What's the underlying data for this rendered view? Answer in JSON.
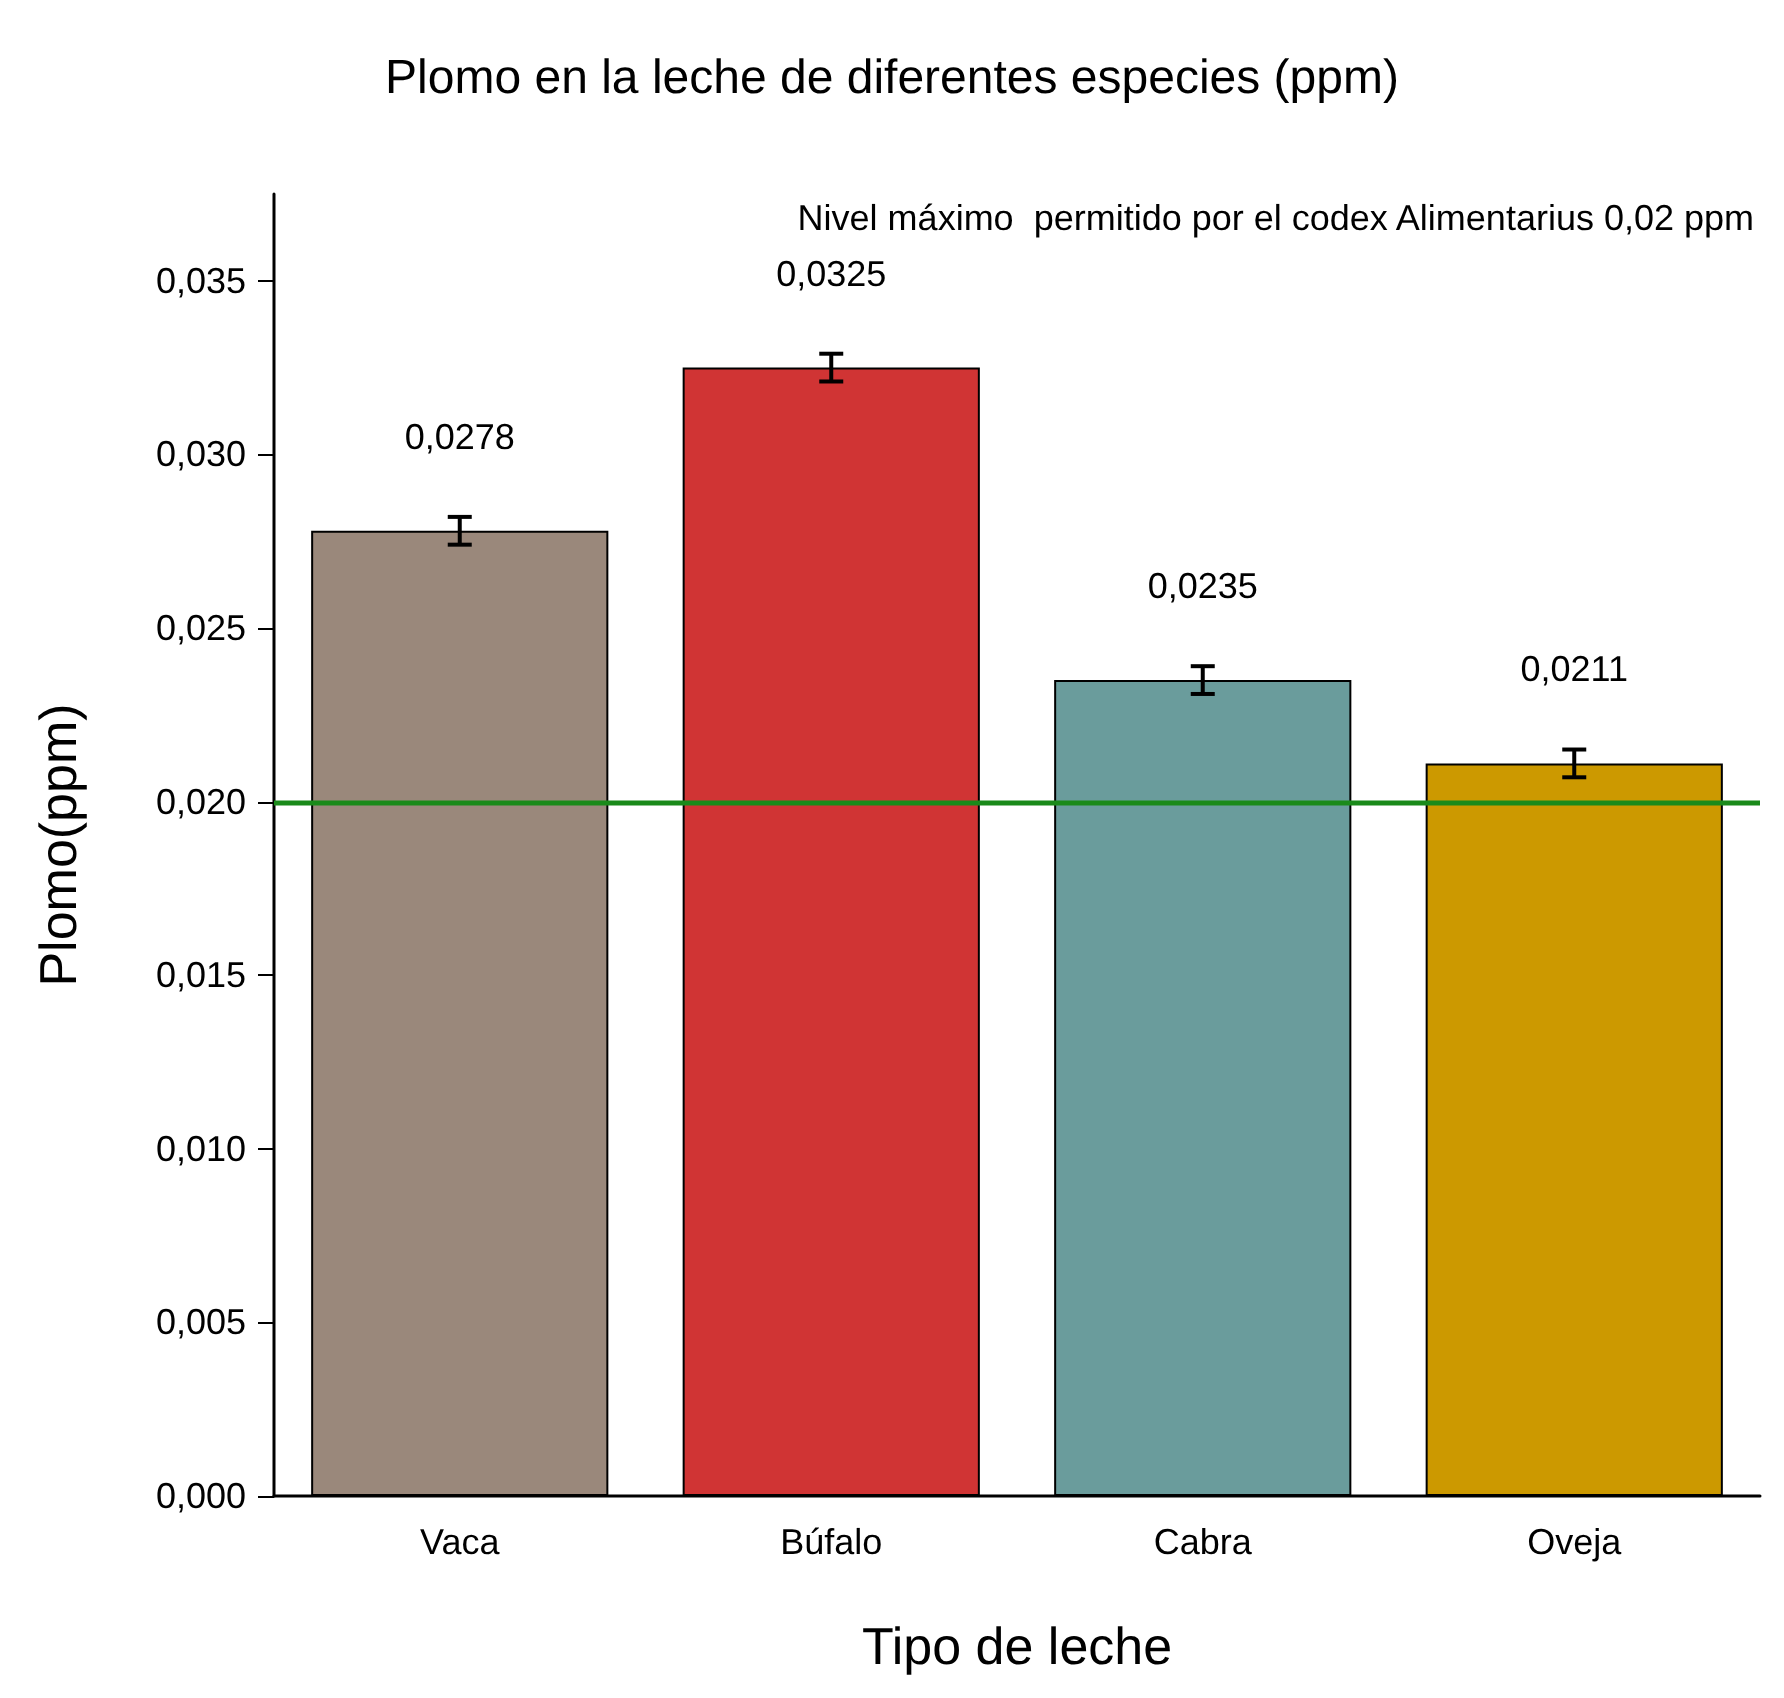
{
  "chart_data": {
    "type": "bar",
    "title": "Plomo en la leche de diferentes especies (ppm)",
    "xlabel": "Tipo de leche",
    "ylabel": "Plomo(ppm)",
    "categories": [
      "Vaca",
      "Búfalo",
      "Cabra",
      "Oveja"
    ],
    "values": [
      0.0278,
      0.0325,
      0.0235,
      0.0211
    ],
    "colors": [
      "#9a887b",
      "#d03434",
      "#6a9c9c",
      "#cc9900"
    ],
    "errors": [
      0.0004,
      0.0004,
      0.0004,
      0.0004
    ],
    "value_labels": [
      "0,0278",
      "0,0325",
      "0,0235",
      "0,0211"
    ],
    "ylim": [
      0,
      0.0375
    ],
    "yticks": [
      {
        "value": 0,
        "label": "0,000"
      },
      {
        "value": 0.005,
        "label": "0,005"
      },
      {
        "value": 0.01,
        "label": "0,010"
      },
      {
        "value": 0.015,
        "label": "0,015"
      },
      {
        "value": 0.02,
        "label": "0,020"
      },
      {
        "value": 0.025,
        "label": "0,025"
      },
      {
        "value": 0.03,
        "label": "0,030"
      },
      {
        "value": 0.035,
        "label": "0,035"
      }
    ],
    "ref_lines": [
      {
        "axis": "y",
        "value": 0.02,
        "color": "#1a8a1a"
      }
    ],
    "annotations": [
      "Nivel máximo  permitido por el codex Alimentarius 0,02 ppm"
    ],
    "grid": false
  }
}
